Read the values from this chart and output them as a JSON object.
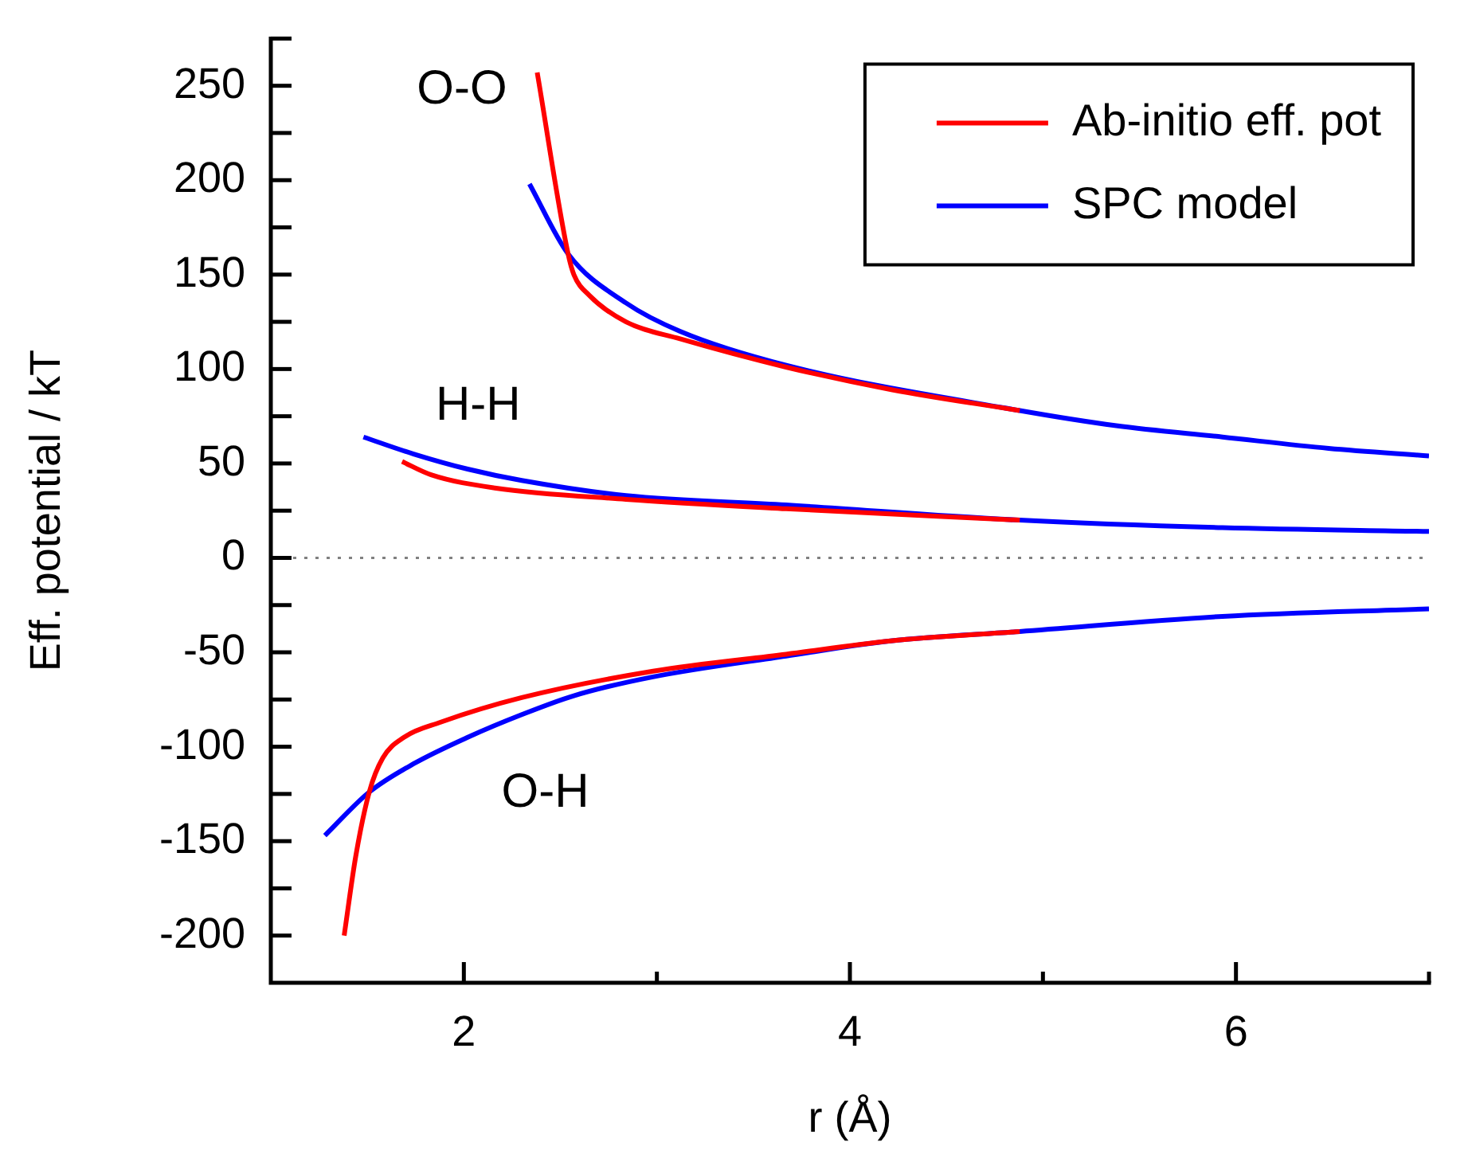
{
  "chart_data": {
    "type": "line",
    "xlabel": "r (Å)",
    "ylabel": "Eff. potential / kT",
    "xlim": [
      1,
      7
    ],
    "xticks": [
      2,
      {
        "value": 3,
        "label": null
      },
      4,
      {
        "value": 5,
        "label": null
      },
      6,
      {
        "value": 7,
        "label": null
      }
    ],
    "ylim": [
      -225,
      275
    ],
    "yticks": [
      -200,
      {
        "value": -175,
        "label": null
      },
      -150,
      {
        "value": -125,
        "label": null
      },
      -100,
      {
        "value": -75,
        "label": null
      },
      -50,
      {
        "value": -25,
        "label": null
      },
      0,
      {
        "value": 25,
        "label": null
      },
      50,
      {
        "value": 75,
        "label": null
      },
      100,
      {
        "value": 125,
        "label": null
      },
      150,
      {
        "value": 175,
        "label": null
      },
      200,
      {
        "value": 225,
        "label": null
      },
      250,
      {
        "value": 275,
        "label": null
      }
    ],
    "legend": "top right",
    "marker": "none",
    "series": [
      {
        "name": "Ab-initio eff. pot",
        "color": "#ff0000",
        "x": [
          2.38,
          2.54,
          2.57,
          2.65,
          2.84,
          3.12,
          3.67,
          4.22,
          4.88
        ],
        "values": [
          257,
          161,
          150,
          139,
          125,
          116,
          101,
          89,
          78
        ]
      },
      {
        "name": "SPC model",
        "color": "#0000ff",
        "x": [
          2.34,
          2.54,
          2.84,
          3.12,
          3.67,
          4.88,
          5.38,
          5.93,
          6.48,
          7.0
        ],
        "values": [
          198,
          161,
          135,
          120,
          102,
          78,
          70,
          64,
          58,
          54
        ]
      },
      {
        "color": "#ff0000",
        "x": [
          1.68,
          1.83,
          2.16,
          2.84,
          3.67,
          4.88
        ],
        "values": [
          51,
          44,
          37,
          31,
          26,
          20
        ]
      },
      {
        "color": "#0000ff",
        "x": [
          1.48,
          1.74,
          2.02,
          2.3,
          2.84,
          3.67,
          4.88,
          5.93,
          7.0
        ],
        "values": [
          64,
          55,
          47,
          41,
          33,
          28,
          20,
          16,
          14
        ]
      },
      {
        "color": "#ff0000",
        "x": [
          1.38,
          1.44,
          1.51,
          1.58,
          1.69,
          1.88,
          2.3,
          2.98,
          3.67,
          4.21,
          4.88
        ],
        "values": [
          -200,
          -158,
          -124,
          -106,
          -95,
          -87,
          -74,
          -60,
          -51,
          -44,
          -39
        ]
      },
      {
        "color": "#0000ff",
        "x": [
          1.28,
          1.51,
          1.74,
          2.02,
          2.3,
          2.57,
          2.98,
          3.67,
          4.21,
          4.88,
          5.93,
          7.0
        ],
        "values": [
          -147,
          -124,
          -109,
          -95,
          -83,
          -73,
          -63,
          -52,
          -44,
          -39,
          -31,
          -27
        ]
      }
    ],
    "ref_lines": [
      {
        "axis": "y",
        "value": 0,
        "color": "#808080",
        "line_style": "dotted"
      }
    ],
    "annotations": [
      "O-O",
      "H-H",
      "O-H"
    ]
  }
}
